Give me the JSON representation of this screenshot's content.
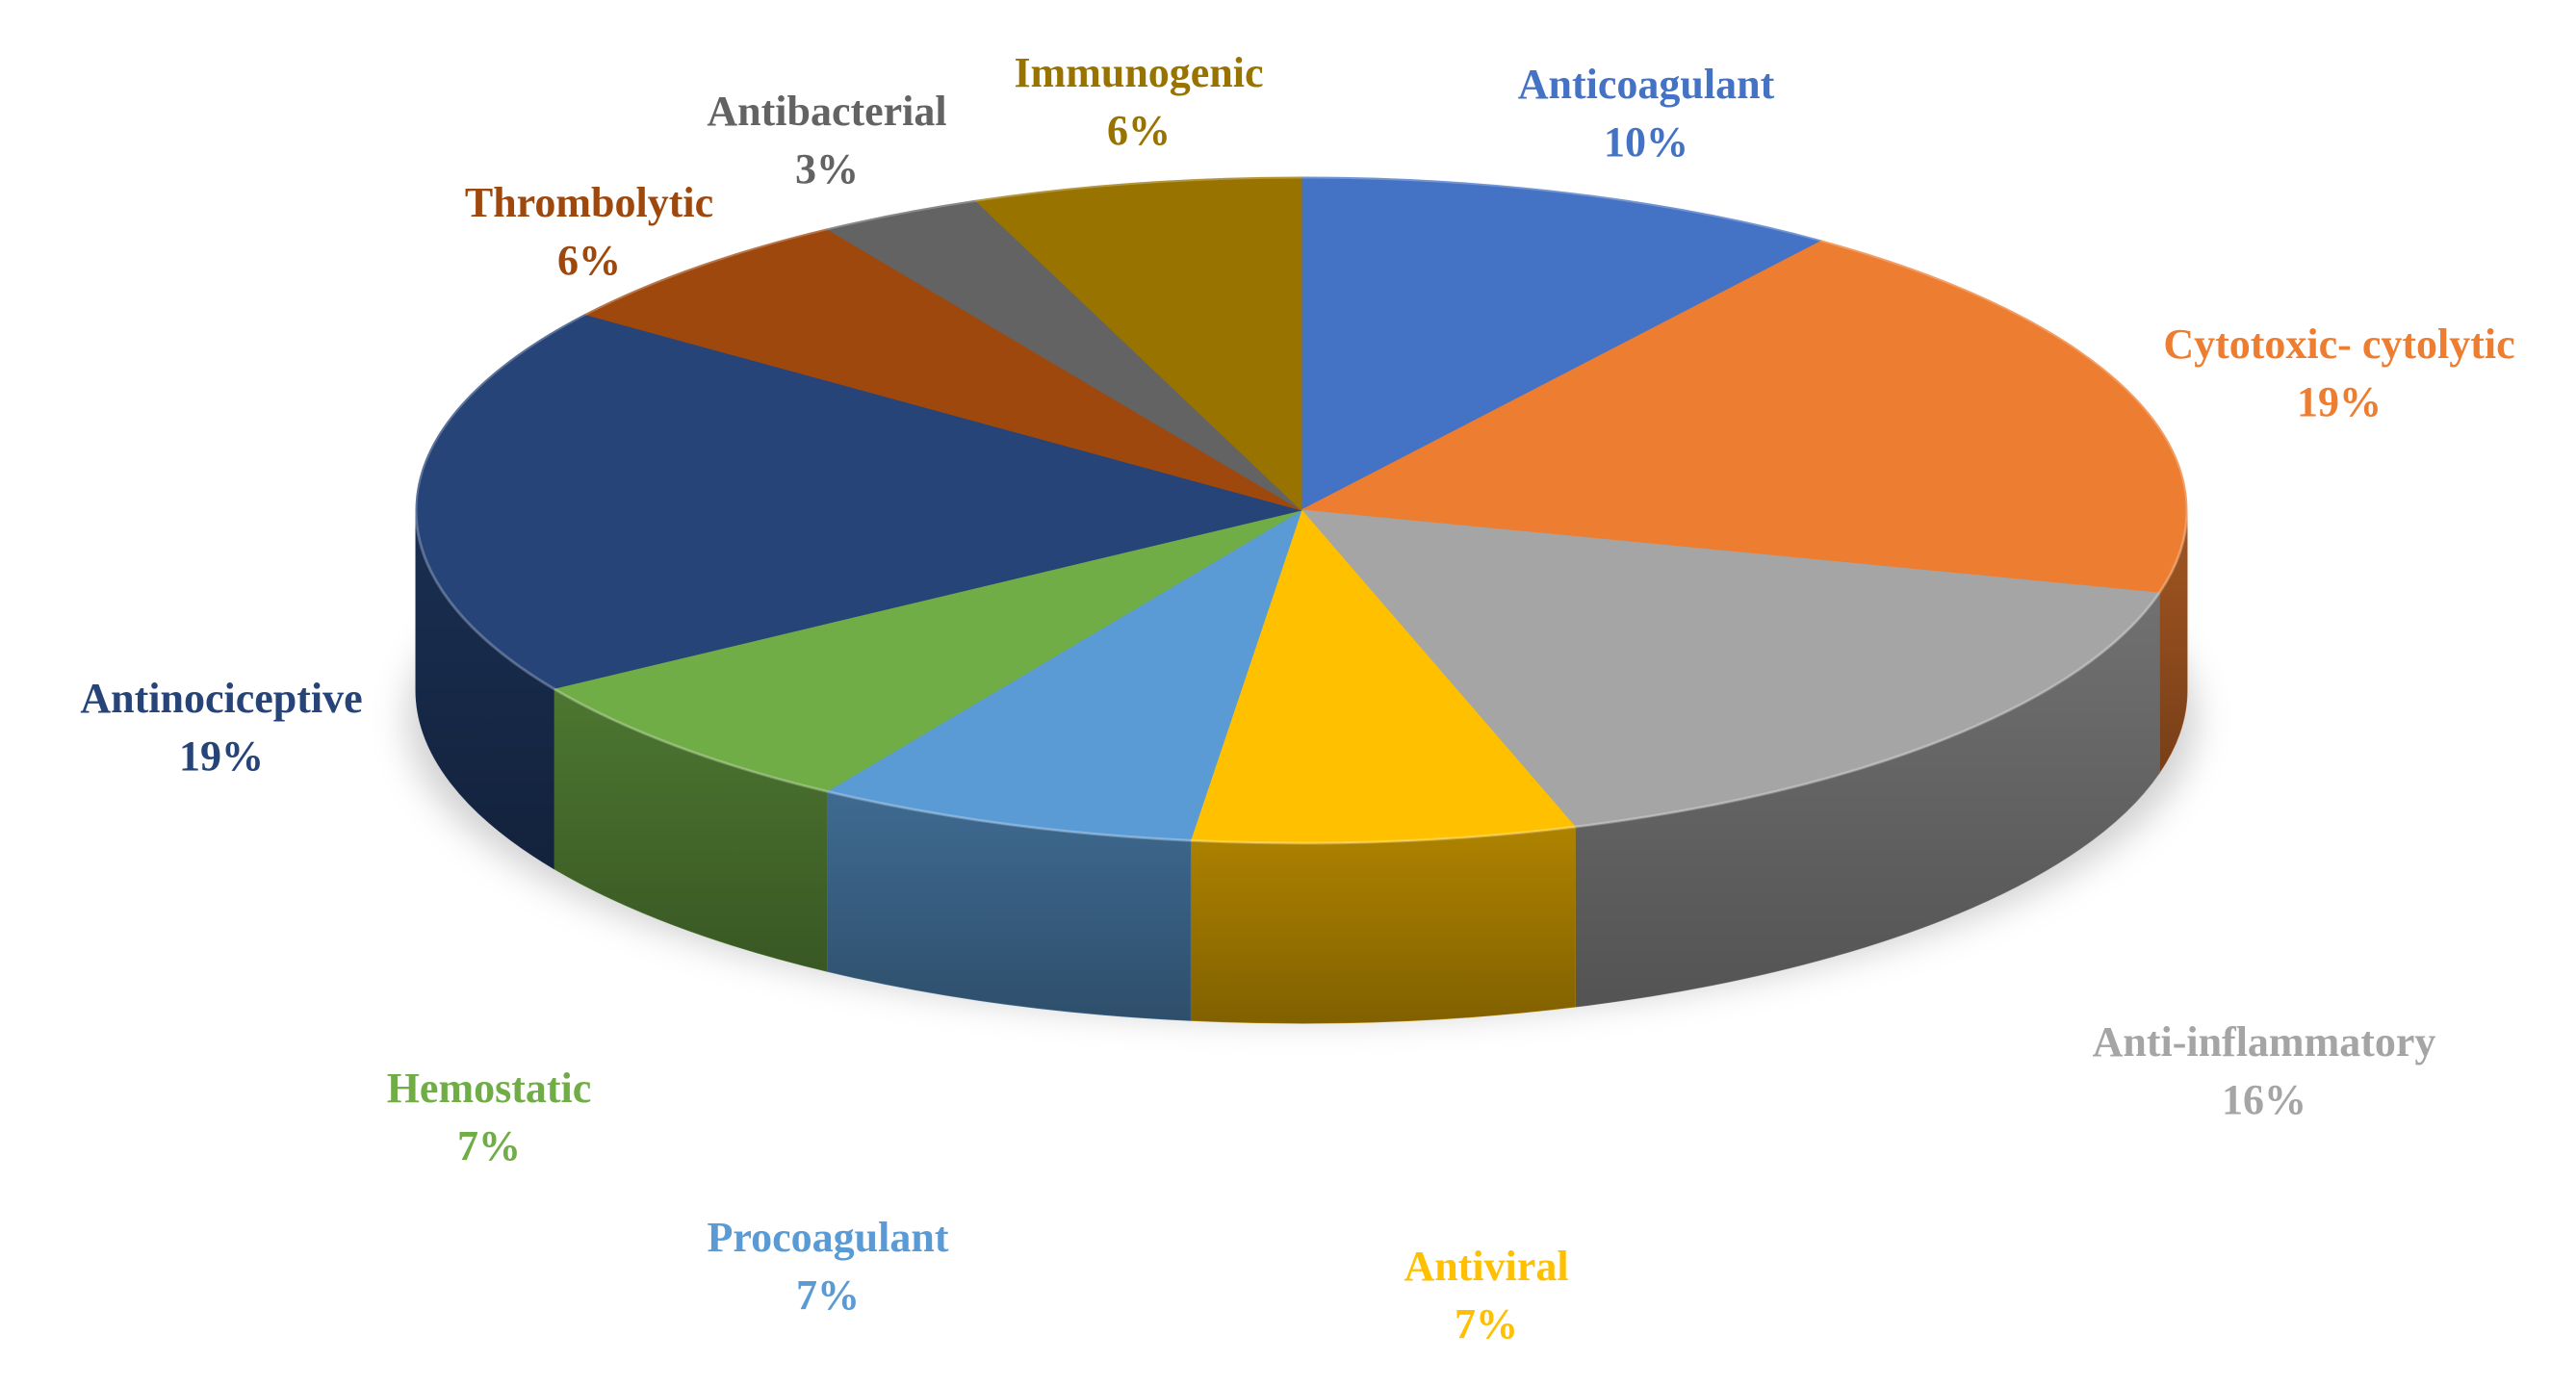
{
  "chart_data": {
    "type": "pie",
    "title": "",
    "three_d": true,
    "start_angle_deg": -90,
    "direction": "clockwise",
    "slices": [
      {
        "label": "Anticoagulant",
        "value": 10,
        "value_label": "10%",
        "color": "#4472C4",
        "label_color": "#4472C4"
      },
      {
        "label": "Cytotoxic- cytolytic",
        "value": 19,
        "value_label": "19%",
        "color": "#ED7D31",
        "label_color": "#ED7D31"
      },
      {
        "label": "Anti-inflammatory",
        "value": 16,
        "value_label": "16%",
        "color": "#A5A5A5",
        "label_color": "#A5A5A5"
      },
      {
        "label": "Antiviral",
        "value": 7,
        "value_label": "7%",
        "color": "#FFC000",
        "label_color": "#FFC000"
      },
      {
        "label": "Procoagulant",
        "value": 7,
        "value_label": "7%",
        "color": "#5B9BD5",
        "label_color": "#5B9BD5"
      },
      {
        "label": "Hemostatic",
        "value": 7,
        "value_label": "7%",
        "color": "#70AD47",
        "label_color": "#70AD47"
      },
      {
        "label": "Antinociceptive",
        "value": 19,
        "value_label": "19%",
        "color": "#264478",
        "label_color": "#264478"
      },
      {
        "label": "Thrombolytic",
        "value": 6,
        "value_label": "6%",
        "color": "#9E480E",
        "label_color": "#9E480E"
      },
      {
        "label": "Antibacterial",
        "value": 3,
        "value_label": "3%",
        "color": "#636363",
        "label_color": "#636363"
      },
      {
        "label": "Immunogenic",
        "value": 6,
        "value_label": "6%",
        "color": "#997300",
        "label_color": "#997300"
      }
    ]
  }
}
